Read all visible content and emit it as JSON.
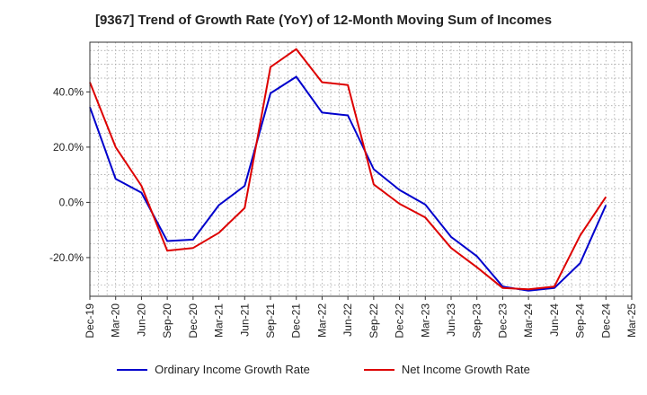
{
  "chart_data": {
    "type": "line",
    "title": "[9367]  Trend of Growth Rate (YoY) of 12-Month Moving Sum of Incomes",
    "xlabel": "",
    "ylabel": "",
    "x": [
      "Dec-19",
      "Mar-20",
      "Jun-20",
      "Sep-20",
      "Dec-20",
      "Mar-21",
      "Jun-21",
      "Sep-21",
      "Dec-21",
      "Mar-22",
      "Jun-22",
      "Sep-22",
      "Dec-22",
      "Mar-23",
      "Jun-23",
      "Sep-23",
      "Dec-23",
      "Mar-24",
      "Jun-24",
      "Sep-24",
      "Dec-24"
    ],
    "tick_labels": [
      "Dec-19",
      "Mar-20",
      "Jun-20",
      "Sep-20",
      "Dec-20",
      "Mar-21",
      "Jun-21",
      "Sep-21",
      "Dec-21",
      "Mar-22",
      "Jun-22",
      "Sep-22",
      "Dec-22",
      "Mar-23",
      "Jun-23",
      "Sep-23",
      "Dec-23",
      "Mar-24",
      "Jun-24",
      "Sep-24",
      "Dec-24",
      "Mar-25"
    ],
    "ylim": [
      -34,
      58
    ],
    "yticks": [
      40,
      20,
      0,
      -20
    ],
    "ytick_labels": [
      "40.0%",
      "20.0%",
      "0.0%",
      "-20.0%"
    ],
    "grid": true,
    "legend_position": "bottom",
    "series": [
      {
        "name": "Ordinary Income Growth Rate",
        "color": "#0000cc",
        "values": [
          34.5,
          8.5,
          3.5,
          -14.0,
          -13.5,
          -1.0,
          6.0,
          39.5,
          45.5,
          32.5,
          31.5,
          12.0,
          4.5,
          -0.8,
          -12.5,
          -19.5,
          -30.5,
          -32.0,
          -31.0,
          -22.0,
          -1.0
        ]
      },
      {
        "name": "Net Income Growth Rate",
        "color": "#dd0000",
        "values": [
          43.5,
          20.0,
          6.0,
          -17.5,
          -16.5,
          -11.0,
          -2.0,
          49.0,
          55.5,
          43.5,
          42.5,
          6.5,
          -0.5,
          -5.5,
          -16.5,
          -23.5,
          -31.0,
          -31.5,
          -30.5,
          -12.0,
          2.0
        ]
      }
    ]
  }
}
